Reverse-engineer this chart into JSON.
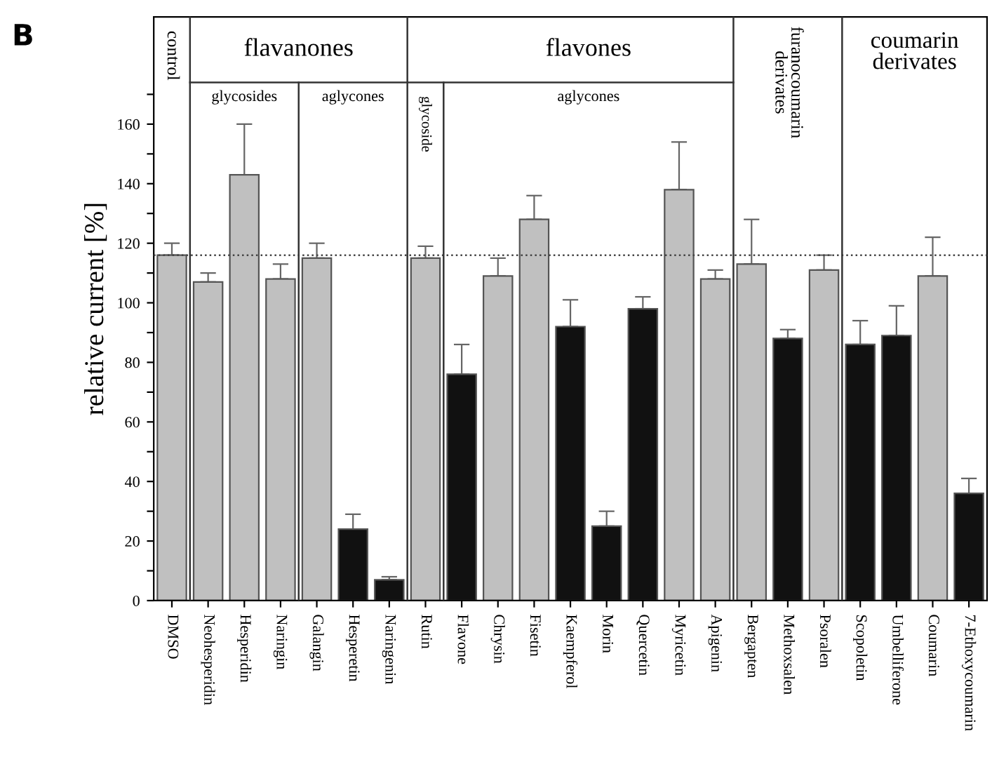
{
  "chart_data": {
    "type": "bar",
    "title": "B",
    "ylabel": "relative current [%]",
    "categories": [
      "DMSO",
      "Neohesperidin",
      "Hesperidin",
      "Naringin",
      "Galangin",
      "Hesperetin",
      "Naringenin",
      "Rutin",
      "Flavone",
      "Chrysin",
      "Fisetin",
      "Kaempferol",
      "Morin",
      "Quercetin",
      "Myricetin",
      "Apigenin",
      "Bergapten",
      "Methoxsalen",
      "Psoralen",
      "Scopoletin",
      "Umbelliferone",
      "Coumarin",
      "7-Ethoxycoumarin"
    ],
    "values": [
      116,
      107,
      143,
      108,
      115,
      24,
      7,
      115,
      76,
      109,
      128,
      92,
      25,
      98,
      138,
      108,
      113,
      88,
      111,
      86,
      89,
      109,
      36
    ],
    "colors": [
      "#c0c0c0",
      "#c0c0c0",
      "#c0c0c0",
      "#c0c0c0",
      "#c0c0c0",
      "#111111",
      "#111111",
      "#c0c0c0",
      "#111111",
      "#c0c0c0",
      "#c0c0c0",
      "#111111",
      "#111111",
      "#111111",
      "#c0c0c0",
      "#c0c0c0",
      "#c0c0c0",
      "#111111",
      "#c0c0c0",
      "#111111",
      "#111111",
      "#c0c0c0",
      "#111111"
    ],
    "errors": [
      [
        116,
        120
      ],
      [
        107,
        110
      ],
      [
        143,
        160
      ],
      [
        108,
        113
      ],
      [
        115,
        120
      ],
      [
        24,
        29
      ],
      [
        7,
        8
      ],
      [
        115,
        119
      ],
      [
        76,
        86
      ],
      [
        109,
        115
      ],
      [
        128,
        136
      ],
      [
        92,
        101
      ],
      [
        25,
        30
      ],
      [
        98,
        102
      ],
      [
        138,
        154
      ],
      [
        108,
        111
      ],
      [
        113,
        128
      ],
      [
        88,
        91
      ],
      [
        111,
        116
      ],
      [
        86,
        94
      ],
      [
        89,
        99
      ],
      [
        109,
        122
      ],
      [
        36,
        41
      ]
    ],
    "ylim": [
      0,
      196
    ],
    "yticks": [
      0,
      {
        "value": 10,
        "label": null
      },
      20,
      {
        "value": 30,
        "label": null
      },
      40,
      {
        "value": 50,
        "label": null
      },
      60,
      {
        "value": 70,
        "label": null
      },
      80,
      {
        "value": 90,
        "label": null
      },
      100,
      {
        "value": 110,
        "label": null
      },
      120,
      {
        "value": 130,
        "label": null
      },
      140,
      {
        "value": 150,
        "label": null
      },
      160,
      {
        "value": 170,
        "label": null
      }
    ],
    "ref_lines": [
      {
        "axis": "y",
        "value": 116,
        "color": "#444444",
        "line_style": "dotted"
      }
    ],
    "annotations": [
      "control",
      "flavanones",
      "flavones",
      "furanocoumarin\nderivates",
      "coumarin\nderivates",
      "glycosides",
      "aglycones",
      "glycoside",
      "aglycones"
    ],
    "grid": false
  }
}
